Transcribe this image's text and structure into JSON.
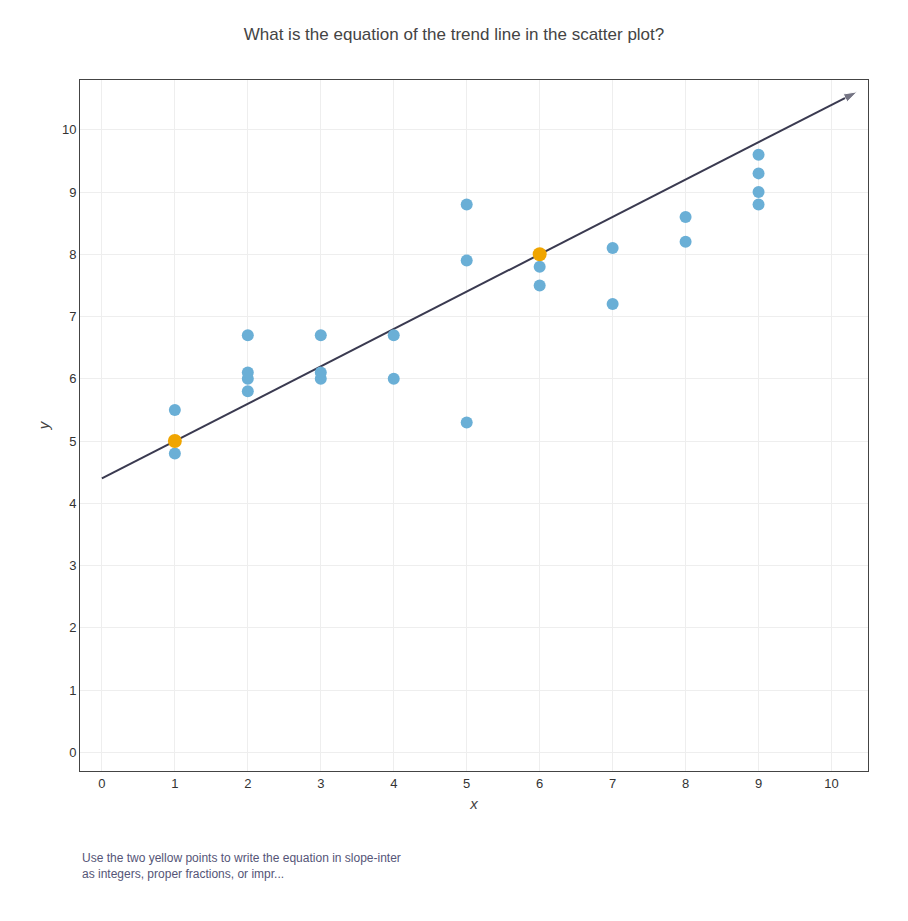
{
  "chart_data": {
    "type": "scatter",
    "title": "What is the equation of the trend line in the scatter plot?",
    "subtitle": [
      "Use the two yellow points to write the equation in slope-inter",
      "as integers, proper fractions, or impr..."
    ],
    "x_label": "x",
    "y_label": "y",
    "xlim": [
      -0.3,
      10.5
    ],
    "ylim": [
      -0.3,
      10.8
    ],
    "xticks": [
      0,
      1,
      2,
      3,
      4,
      5,
      6,
      7,
      8,
      9,
      10
    ],
    "yticks": [
      0,
      1,
      2,
      3,
      4,
      5,
      6,
      7,
      8,
      9,
      10
    ],
    "grid": true,
    "series": [
      {
        "type": "line",
        "color": "#3a3a50",
        "x": [
          0,
          10.35
        ],
        "values": [
          4.4,
          10.61
        ]
      },
      {
        "type": "scatter",
        "color": "#6aafd6",
        "x": [
          1,
          1,
          2,
          2,
          2,
          2,
          3,
          3,
          3,
          4,
          4,
          5,
          5,
          5,
          6,
          6,
          7,
          7,
          8,
          8,
          9,
          9,
          9,
          9
        ],
        "values": [
          5.5,
          4.8,
          6.7,
          6.0,
          6.1,
          5.8,
          6.7,
          6.0,
          6.1,
          6.7,
          6.0,
          8.8,
          7.9,
          5.3,
          7.8,
          7.5,
          8.1,
          7.2,
          8.6,
          8.2,
          9.6,
          9.3,
          9.0,
          8.8
        ]
      },
      {
        "type": "scatter",
        "color": "#f0a500",
        "x": [
          1,
          6
        ],
        "values": [
          5,
          8
        ]
      }
    ]
  }
}
